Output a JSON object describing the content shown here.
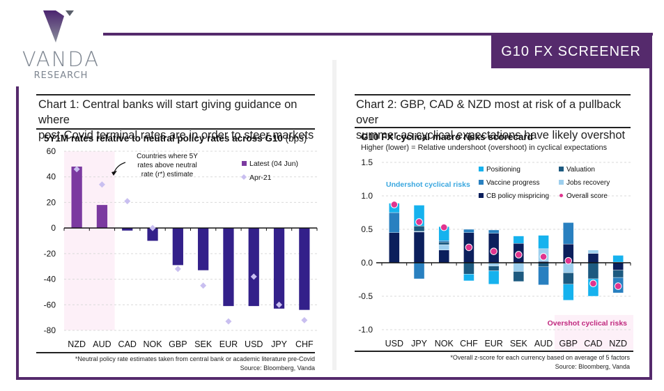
{
  "brand": {
    "name": "VANDA",
    "tagline": "RESEARCH",
    "accent_color": "#552a6c"
  },
  "banner": {
    "title": "G10 FX SCREENER"
  },
  "chart1": {
    "heading_line1": "Chart 1: Central banks will start giving guidance on where",
    "heading_line2": "post-Covid terminal rates are in order to steer markets",
    "subtitle_bold": "5Y1M rates relative to neutral policy rates across G10",
    "subtitle_unit": " (bps)",
    "annotation": [
      "Countries where 5Y",
      "rates above neutral",
      "rate (r*) estimate"
    ],
    "footnote": "*Neutral policy rate estimates taken from central bank or academic literature pre-Covid",
    "source": "Source: Bloomberg, Vanda"
  },
  "chart2": {
    "heading_line1": "Chart 2: GBP, CAD & NZD most at risk of a pullback over",
    "heading_line2": "summer as cyclical expectations have likely overshot",
    "subtitle_bold": "G10 FX cyclical macro risks scorecard",
    "subtitle_desc": "Higher (lower) = Relative undershoot (overshoot) in cyclical expectations",
    "undershoot_label": "Undershot cyclical risks",
    "overshoot_label": "Overshot cyclical risks",
    "footnote": "*Overall z-score for each currency based on average of 5 factors",
    "source": "Source: Bloomberg, Vanda"
  },
  "chart_data": [
    {
      "type": "bar",
      "title": "5Y1M rates relative to neutral policy rates across G10 (bps)",
      "xlabel": "",
      "ylabel": "bps",
      "ylim": [
        -80,
        60
      ],
      "yticks": [
        60,
        40,
        20,
        0,
        -20,
        -40,
        -60,
        -80
      ],
      "grid": true,
      "legend_position": "top-right",
      "categories": [
        "NZD",
        "AUD",
        "CAD",
        "NOK",
        "GBP",
        "SEK",
        "EUR",
        "USD",
        "JPY",
        "CHF"
      ],
      "highlight_categories": [
        "NZD",
        "AUD"
      ],
      "highlight_color": "#fdf0f8",
      "series": [
        {
          "name": "Latest (04 Jun)",
          "kind": "bar",
          "color_positive": "#7b3aa0",
          "color_negative": "#33208a",
          "values": [
            48,
            18,
            -2,
            -10,
            -29,
            -33,
            -61,
            -61,
            -63,
            -64
          ]
        },
        {
          "name": "Apr-21",
          "kind": "diamond",
          "color": "#c9bff0",
          "values": [
            46,
            34,
            21,
            0,
            -32,
            -45,
            -73,
            -38,
            -60,
            -72
          ]
        }
      ]
    },
    {
      "type": "bar",
      "stacked": true,
      "title": "G10 FX cyclical macro risks scorecard",
      "subtitle": "Higher (lower) = Relative undershoot (overshoot) in cyclical expectations",
      "xlabel": "",
      "ylabel": "",
      "ylim": [
        -1.0,
        1.5
      ],
      "yticks": [
        1.5,
        1.0,
        0.5,
        0.0,
        -0.5,
        -1.0
      ],
      "grid": true,
      "legend_position": "top-right",
      "categories": [
        "USD",
        "JPY",
        "NOK",
        "CHF",
        "EUR",
        "SEK",
        "AUD",
        "GBP",
        "CAD",
        "NZD"
      ],
      "highlight_categories": [
        "GBP",
        "CAD",
        "NZD"
      ],
      "highlight_color": "#fdf0f8",
      "series": [
        {
          "name": "CB policy mispricing",
          "color": "#0b1f5c",
          "values": [
            0.45,
            0.46,
            0.19,
            0.45,
            0.44,
            0.29,
            0.02,
            0.28,
            0.14,
            -0.11
          ]
        },
        {
          "name": "Jobs recovery",
          "color": "#9dcfee",
          "values": [
            0.0,
            0.01,
            0.08,
            0.0,
            -0.05,
            -0.13,
            0.19,
            -0.15,
            0.05,
            0.01
          ]
        },
        {
          "name": "Valuation",
          "color": "#1d5a80",
          "values": [
            0.0,
            0.08,
            0.04,
            -0.17,
            -0.07,
            -0.15,
            -0.06,
            -0.17,
            -0.24,
            -0.11
          ]
        },
        {
          "name": "Vaccine progress",
          "color": "#2980c0",
          "values": [
            0.3,
            -0.24,
            0.02,
            0.05,
            0.05,
            0.0,
            -0.27,
            0.32,
            0.0,
            -0.23
          ]
        },
        {
          "name": "Positioning",
          "color": "#16b2ee",
          "values": [
            0.14,
            0.31,
            0.21,
            -0.1,
            -0.2,
            0.11,
            0.2,
            -0.24,
            -0.26,
            0.1
          ]
        },
        {
          "name": "Overall score",
          "kind": "dot",
          "color": "#e0348e",
          "values": [
            0.87,
            0.61,
            0.53,
            0.23,
            0.17,
            0.12,
            0.09,
            0.03,
            -0.31,
            -0.35
          ]
        }
      ],
      "legend_order": [
        "Positioning",
        "Valuation",
        "Vaccine progress",
        "Jobs recovery",
        "CB policy mispricing",
        "Overall score"
      ]
    }
  ]
}
